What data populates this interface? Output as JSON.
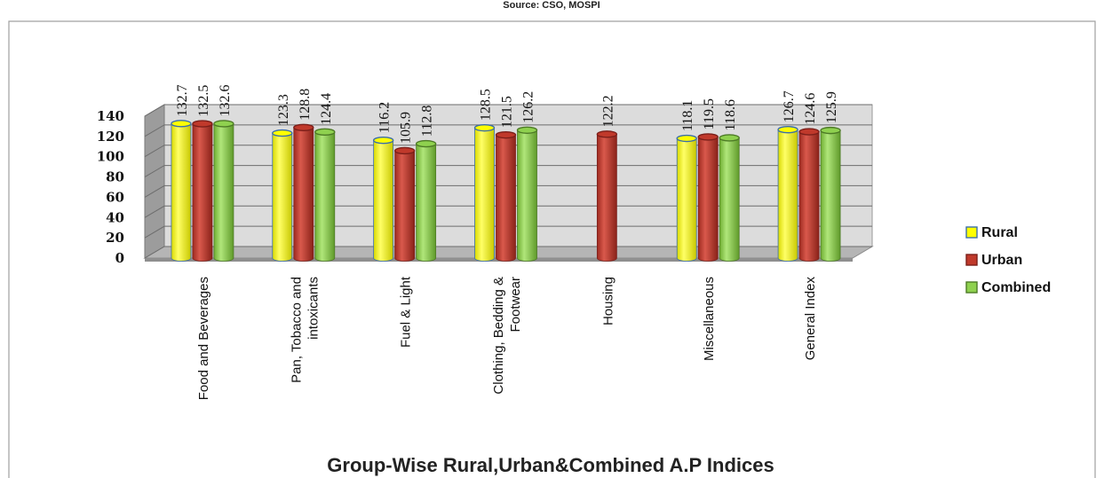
{
  "source_note": "Source: CSO, MOSPI",
  "chart_data": {
    "type": "bar",
    "title": "",
    "xlabel": "Group-Wise Rural,Urban&Combined A.P Indices",
    "ylabel": "",
    "ylim": [
      0,
      140
    ],
    "yticks": [
      "0",
      "20",
      "40",
      "60",
      "80",
      "100",
      "120",
      "140"
    ],
    "grid": true,
    "legend_position": "right",
    "categories": [
      [
        "Food and Beverages"
      ],
      [
        "Pan, Tobacco and",
        "intoxicants"
      ],
      [
        "Fuel & Light"
      ],
      [
        "Clothing, Bedding &",
        "Footwear"
      ],
      [
        "Housing"
      ],
      [
        "Miscellaneous"
      ],
      [
        "General Index"
      ]
    ],
    "series": [
      {
        "name": "Rural",
        "color": "#ffff00",
        "stroke": "#3b6ea8",
        "values": [
          132.7,
          123.3,
          116.2,
          128.5,
          null,
          118.1,
          126.7
        ],
        "labels": [
          "132.7",
          "123.3",
          "116.2",
          "128.5",
          "",
          "118.1",
          "126.7"
        ]
      },
      {
        "name": "Urban",
        "color": "#c0392b",
        "stroke": "#7b1f1a",
        "values": [
          132.5,
          128.8,
          105.9,
          121.5,
          122.2,
          119.5,
          124.6
        ],
        "labels": [
          "132.5",
          "128.8",
          "105.9",
          "121.5",
          "122.2",
          "119.5",
          "124.6"
        ]
      },
      {
        "name": "Combined",
        "color": "#8fd14f",
        "stroke": "#4d7a26",
        "values": [
          132.6,
          124.4,
          112.8,
          126.2,
          null,
          118.6,
          125.9
        ],
        "labels": [
          "132.6",
          "124.4",
          "112.8",
          "126.2",
          "",
          "118.6",
          "125.9"
        ]
      }
    ]
  }
}
